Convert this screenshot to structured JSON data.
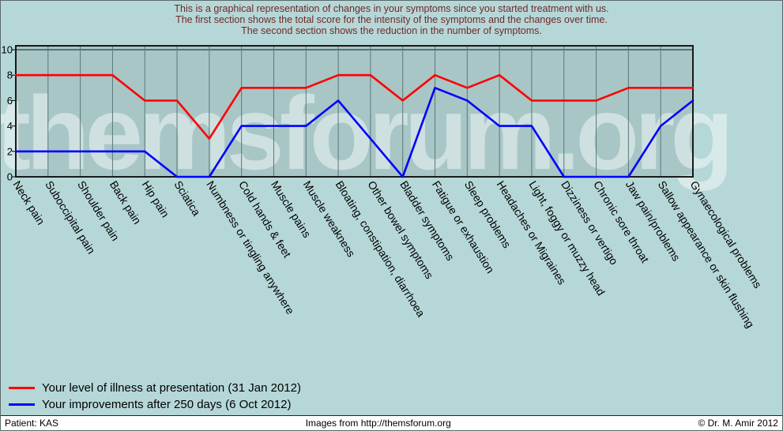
{
  "header": {
    "line1": "This is a graphical representation of changes in your symptoms since you started treatment with us.",
    "line2": "The first section shows the total score for the intensity of the symptoms and the changes over time.",
    "line3": "The second section shows the reduction in the number of symptoms."
  },
  "watermark": "themsforum.org",
  "colors": {
    "page_background": "#b6d7d7",
    "plot_background": "#a8c6c6",
    "gridline": "#5a7878",
    "header_text": "#702828"
  },
  "chart_data": {
    "type": "line",
    "categories": [
      "Neck pain",
      "Suboccipital pain",
      "Shoulder pain",
      "Back pain",
      "Hip pain",
      "Sciatica",
      "Numbness or tingling anywhere",
      "Cold hands & feet",
      "Muscle pains",
      "Muscle weakness",
      "Bloating, constipation, diarrhoea",
      "Other bowel symptoms",
      "Bladder symptoms",
      "Fatigue or exhaustion",
      "Sleep problems",
      "Headaches or Migraines",
      "Light, foggy or muzzy head",
      "Dizziness or vertigo",
      "Chronic sore throat",
      "Jaw pain/problems",
      "Sallow appearance or skin flushing",
      "Gynaecological problems"
    ],
    "series": [
      {
        "name": "Your level of illness at presentation (31 Jan 2012)",
        "color": "#ff0000",
        "values": [
          8,
          8,
          8,
          8,
          6,
          6,
          3,
          7,
          7,
          7,
          8,
          8,
          6,
          8,
          7,
          8,
          6,
          6,
          6,
          7,
          7,
          7
        ]
      },
      {
        "name": "Your improvements after 250 days (6 Oct 2012)",
        "color": "#0000ff",
        "values": [
          2,
          2,
          2,
          2,
          2,
          0,
          0,
          4,
          4,
          4,
          6,
          3,
          0,
          7,
          6,
          4,
          4,
          0,
          0,
          0,
          4,
          6
        ]
      }
    ],
    "ylim": [
      0,
      10
    ],
    "yticks": [
      0,
      2,
      4,
      6,
      8,
      10
    ],
    "grid": "vertical",
    "legend_position": "bottom-left"
  },
  "footer": {
    "patient": "Patient: KAS",
    "credit": "Images from http://themsforum.org",
    "copyright": "© Dr. M. Amir 2012"
  }
}
